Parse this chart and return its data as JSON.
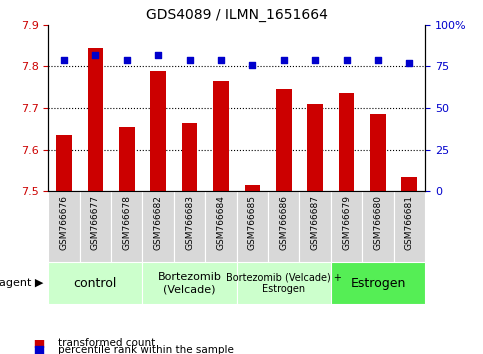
{
  "title": "GDS4089 / ILMN_1651664",
  "categories": [
    "GSM766676",
    "GSM766677",
    "GSM766678",
    "GSM766682",
    "GSM766683",
    "GSM766684",
    "GSM766685",
    "GSM766686",
    "GSM766687",
    "GSM766679",
    "GSM766680",
    "GSM766681"
  ],
  "bar_values": [
    7.635,
    7.845,
    7.655,
    7.79,
    7.665,
    7.765,
    7.515,
    7.745,
    7.71,
    7.735,
    7.685,
    7.535
  ],
  "percentile_values": [
    79,
    82,
    79,
    82,
    79,
    79,
    76,
    79,
    79,
    79,
    79,
    77
  ],
  "bar_color": "#cc0000",
  "percentile_color": "#0000cc",
  "ylim_left": [
    7.5,
    7.9
  ],
  "ylim_right": [
    0,
    100
  ],
  "yticks_left": [
    7.5,
    7.6,
    7.7,
    7.8,
    7.9
  ],
  "yticks_right": [
    0,
    25,
    50,
    75,
    100
  ],
  "ytick_labels_right": [
    "0",
    "25",
    "50",
    "75",
    "100%"
  ],
  "grid_lines": [
    7.6,
    7.7,
    7.8
  ],
  "groups": [
    {
      "label": "control",
      "start": 0,
      "end": 3,
      "color": "#ccffcc",
      "fontsize": 9
    },
    {
      "label": "Bortezomib\n(Velcade)",
      "start": 3,
      "end": 6,
      "color": "#ccffcc",
      "fontsize": 8
    },
    {
      "label": "Bortezomib (Velcade) +\nEstrogen",
      "start": 6,
      "end": 9,
      "color": "#ccffcc",
      "fontsize": 7
    },
    {
      "label": "Estrogen",
      "start": 9,
      "end": 12,
      "color": "#55ee55",
      "fontsize": 9
    }
  ],
  "agent_label": "agent ▶",
  "legend_items": [
    {
      "label": "transformed count",
      "color": "#cc0000"
    },
    {
      "label": "percentile rank within the sample",
      "color": "#0000cc"
    }
  ],
  "bar_bottom": 7.5,
  "bar_width": 0.5,
  "tick_label_color": "#d0d0d0",
  "gray_box_color": "#d8d8d8"
}
